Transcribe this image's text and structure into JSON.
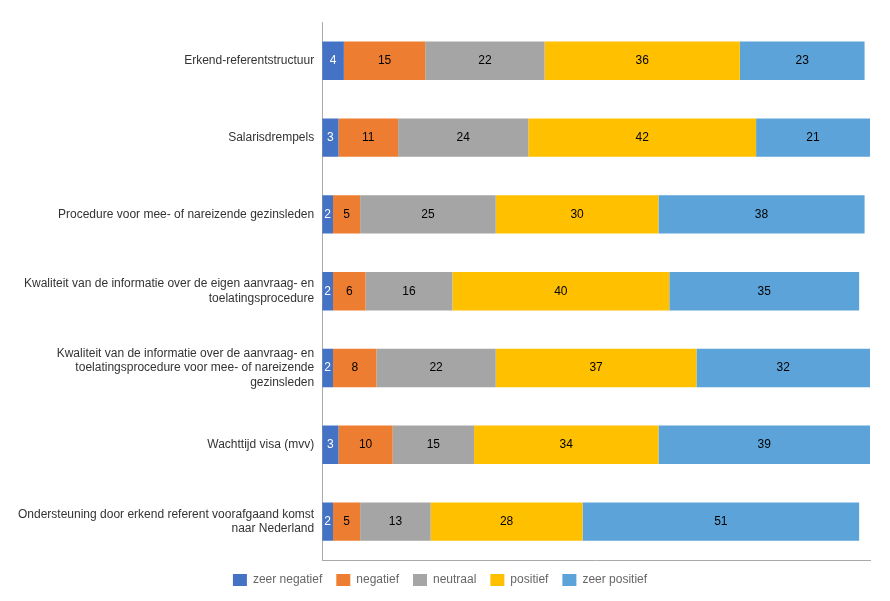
{
  "chart_data": {
    "type": "bar",
    "orientation": "horizontal",
    "stacked": true,
    "categories": [
      "Erkend-referentstructuur",
      "Salarisdrempels",
      "Procedure voor mee- of nareizende gezinsleden",
      "Kwaliteit van de informatie over de eigen aanvraag- en\ntoelatingsprocedure",
      "Kwaliteit van de informatie over de aanvraag- en\ntoelatingsprocedure voor mee- of nareizende\ngezinsleden",
      "Wachttijd visa (mvv)",
      "Ondersteuning door erkend referent voorafgaand komst\nnaar Nederland"
    ],
    "series": [
      {
        "name": "zeer negatief",
        "color": "#4472C4",
        "values": [
          4,
          3,
          2,
          2,
          2,
          3,
          2
        ]
      },
      {
        "name": "negatief",
        "color": "#ED7D31",
        "values": [
          15,
          11,
          5,
          6,
          8,
          10,
          5
        ]
      },
      {
        "name": "neutraal",
        "color": "#A5A5A5",
        "values": [
          22,
          24,
          25,
          16,
          22,
          15,
          13
        ]
      },
      {
        "name": "positief",
        "color": "#FFC000",
        "values": [
          36,
          42,
          30,
          40,
          37,
          34,
          28
        ]
      },
      {
        "name": "zeer positief",
        "color": "#5BA3D9",
        "values": [
          23,
          21,
          38,
          35,
          32,
          39,
          51
        ]
      }
    ],
    "xlim": [
      0,
      101
    ],
    "xticks": [],
    "tick_labels": "y",
    "grid": false,
    "legend": "bottom",
    "data_labels": true
  }
}
